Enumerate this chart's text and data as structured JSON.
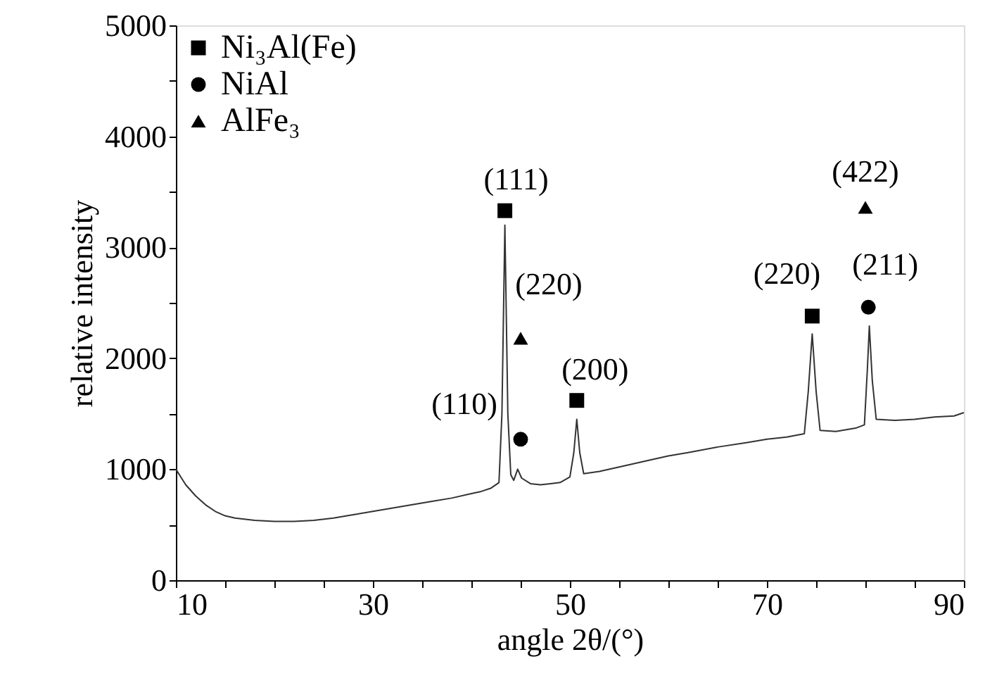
{
  "chart_data": {
    "type": "line",
    "xlabel": "angle 2θ/(°)",
    "ylabel": "relative intensity",
    "xlim": [
      10,
      90
    ],
    "xticks": [
      10,
      {
        "value": 15,
        "label": null
      },
      {
        "value": 20,
        "label": null
      },
      {
        "value": 25,
        "label": null
      },
      30,
      {
        "value": 35,
        "label": null
      },
      {
        "value": 40,
        "label": null
      },
      {
        "value": 45,
        "label": null
      },
      50,
      {
        "value": 55,
        "label": null
      },
      {
        "value": 60,
        "label": null
      },
      {
        "value": 65,
        "label": null
      },
      70,
      {
        "value": 75,
        "label": null
      },
      {
        "value": 80,
        "label": null
      },
      {
        "value": 85,
        "label": null
      },
      90
    ],
    "ylim": [
      0,
      5000
    ],
    "yticks": [
      0,
      {
        "value": 500,
        "label": null
      },
      1000,
      {
        "value": 1500,
        "label": null
      },
      2000,
      {
        "value": 2500,
        "label": null
      },
      3000,
      {
        "value": 3500,
        "label": null
      },
      4000,
      {
        "value": 4500,
        "label": null
      },
      5000
    ],
    "grid": false,
    "legend": "top left",
    "series": [
      {
        "color": "#333333",
        "x": [
          10,
          10.5,
          11,
          12,
          13,
          14,
          15,
          16,
          18,
          20,
          22,
          24,
          26,
          28,
          30,
          32,
          34,
          36,
          38,
          40,
          41,
          42,
          42.8,
          43.1,
          43.4,
          43.7,
          44.0,
          44.3,
          44.7,
          45.1,
          46,
          47,
          48,
          49,
          50,
          50.4,
          50.7,
          51.0,
          51.4,
          53,
          55,
          58,
          60,
          62,
          65,
          68,
          70,
          72,
          73.8,
          74.2,
          74.6,
          75.0,
          75.4,
          77,
          79,
          79.9,
          80.2,
          80.4,
          80.7,
          81.1,
          83,
          85,
          87,
          89,
          90
        ],
        "values": [
          1000,
          930,
          860,
          760,
          680,
          620,
          580,
          560,
          540,
          530,
          530,
          540,
          560,
          590,
          620,
          650,
          680,
          710,
          740,
          780,
          800,
          830,
          880,
          1500,
          3200,
          1500,
          950,
          900,
          1000,
          920,
          870,
          860,
          870,
          880,
          930,
          1150,
          1450,
          1150,
          960,
          980,
          1020,
          1080,
          1120,
          1150,
          1200,
          1240,
          1270,
          1290,
          1320,
          1700,
          2220,
          1700,
          1350,
          1340,
          1370,
          1400,
          1900,
          2290,
          1800,
          1450,
          1440,
          1450,
          1470,
          1480,
          1510
        ]
      },
      {
        "type": "scatter",
        "name": "Ni₃Al(Fe)",
        "marker": "square",
        "color": "#000000",
        "x": [
          43.4,
          50.7,
          74.6
        ],
        "values": [
          3330,
          1620,
          2380
        ]
      },
      {
        "type": "scatter",
        "name": "NiAl",
        "marker": "circle",
        "color": "#000000",
        "x": [
          45.0,
          80.3
        ],
        "values": [
          1270,
          2460
        ]
      },
      {
        "type": "scatter",
        "name": "AlFe₃",
        "marker": "triangle",
        "color": "#000000",
        "x": [
          45.0,
          80.0
        ],
        "values": [
          2180,
          3360
        ]
      }
    ],
    "annotations": [
      "(111)",
      "(220)",
      "(110)",
      "(200)",
      "(220)",
      "(211)",
      "(422)"
    ]
  }
}
